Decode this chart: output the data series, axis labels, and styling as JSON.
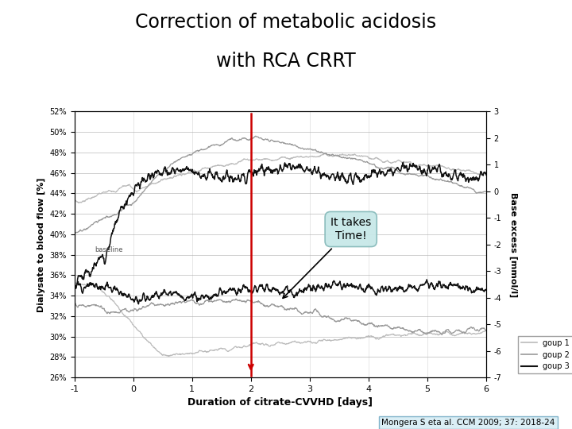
{
  "title_line1": "Correction of metabolic acidosis",
  "title_line2": "with RCA CRRT",
  "xlabel": "Duration of citrate-CVVHD [days]",
  "ylabel_left": "Dialysate to blood flow [%]",
  "ylabel_right": "Base excess [mmol/l]",
  "xlim": [
    -1,
    6
  ],
  "ylim_left": [
    26,
    52
  ],
  "ylim_right": [
    -7,
    3
  ],
  "yticks_left": [
    26,
    28,
    30,
    32,
    34,
    36,
    38,
    40,
    42,
    44,
    46,
    48,
    50,
    52
  ],
  "ytick_labels_left": [
    "26%",
    "28%",
    "30%",
    "32%",
    "34%",
    "36%",
    "38%",
    "40%",
    "42%",
    "44%",
    "46%",
    "48%",
    "50%",
    "52%"
  ],
  "yticks_right": [
    -7,
    -6,
    -5,
    -4,
    -3,
    -2,
    -1,
    0,
    1,
    2,
    3
  ],
  "xticks": [
    -1,
    0,
    1,
    2,
    3,
    4,
    5,
    6
  ],
  "baseline_label": "baseline",
  "red_line_x": 2,
  "annotation_text": "It takes\nTime!",
  "citation": "Mongera S eta al. CCM 2009; 37: 2018-24",
  "background_color": "#ffffff",
  "group1_color": "#bbbbbb",
  "group2_color": "#999999",
  "group3_color": "#111111",
  "red_line_color": "#cc0000",
  "legend_labels": [
    "goup 1",
    "goup 2",
    "goup 3"
  ]
}
